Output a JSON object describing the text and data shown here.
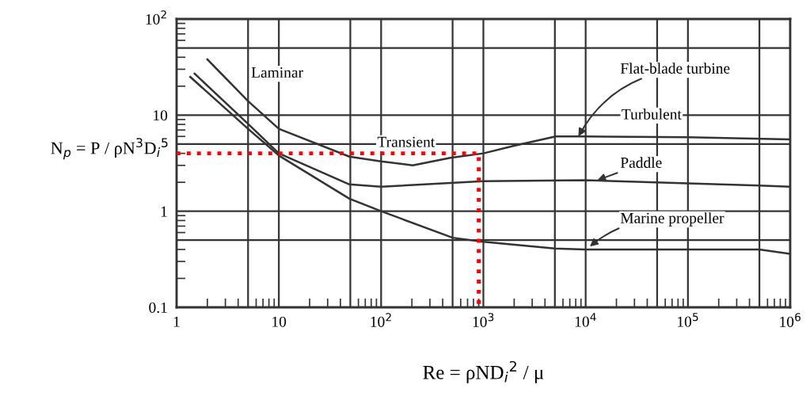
{
  "chart_data": {
    "type": "line",
    "xlabel": "Re = ρND$_{i}$$^{2}$ / μ",
    "ylabel": "N$_{p}$ = P / ρN$^{3}$D$_{i}$$^{5}$",
    "log": "xy",
    "xlim": [
      1,
      1000000
    ],
    "xticks": [
      1,
      10,
      {
        "value": 100,
        "label": "10$^{2}$"
      },
      {
        "value": 1000,
        "label": "10$^{3}$"
      },
      {
        "value": 10000,
        "label": "10$^{4}$"
      },
      {
        "value": 100000,
        "label": "10$^{5}$"
      },
      {
        "value": 1000000,
        "label": "10$^{6}$"
      }
    ],
    "ylim": [
      0.1,
      100
    ],
    "yticks": [
      0.1,
      1,
      10,
      {
        "value": 100,
        "label": "10$^{2}$"
      }
    ],
    "grid": true,
    "series": [
      {
        "color": "#333333",
        "x": [
          2,
          5,
          10,
          49,
          100,
          204,
          475,
          1000,
          2000,
          5100,
          10000,
          100000,
          1000000
        ],
        "values": [
          38,
          14,
          7.2,
          3.7,
          3.3,
          3.0,
          3.6,
          4.0,
          4.8,
          6.0,
          6.0,
          5.9,
          5.6
        ]
      },
      {
        "color": "#333333",
        "x": [
          1.5,
          5,
          10,
          49,
          100,
          1000,
          10000,
          500000,
          1000000
        ],
        "values": [
          27,
          8.1,
          4,
          1.9,
          1.8,
          2.05,
          2.1,
          1.85,
          1.8
        ]
      },
      {
        "color": "#333333",
        "x": [
          1.36,
          5,
          10,
          49,
          100,
          500,
          1000,
          5000,
          10000,
          500000,
          1000000
        ],
        "values": [
          25,
          7.2,
          3.8,
          1.35,
          1.0,
          0.53,
          0.48,
          0.41,
          0.4,
          0.4,
          0.36
        ]
      },
      {
        "color": "#ff0000",
        "line_style": "dotted",
        "x": [
          1,
          900,
          900
        ],
        "values": [
          4,
          4,
          0.1
        ]
      }
    ],
    "ref_lines": [
      {
        "axis": "x",
        "value": 5,
        "color": "#333333"
      },
      {
        "axis": "x",
        "value": 50,
        "color": "#333333"
      },
      {
        "axis": "x",
        "value": 500,
        "color": "#333333"
      },
      {
        "axis": "x",
        "value": 5000,
        "color": "#333333"
      },
      {
        "axis": "x",
        "value": 50000,
        "color": "#333333"
      },
      {
        "axis": "x",
        "value": 500000,
        "color": "#333333"
      },
      {
        "axis": "y",
        "value": 0.5,
        "color": "#333333"
      },
      {
        "axis": "y",
        "value": 5,
        "color": "#333333"
      },
      {
        "axis": "y",
        "value": 50,
        "color": "#333333"
      }
    ],
    "annotations": [
      "Laminar",
      "Transient",
      "Turbulent",
      {
        "text": "Flat-blade turbine",
        "x": 8500,
        "y": 6.0
      },
      {
        "text": "Paddle",
        "x": 13000,
        "y": 2.1
      },
      {
        "text": "Marine propeller",
        "x": 11000,
        "y": 0.43
      }
    ]
  }
}
